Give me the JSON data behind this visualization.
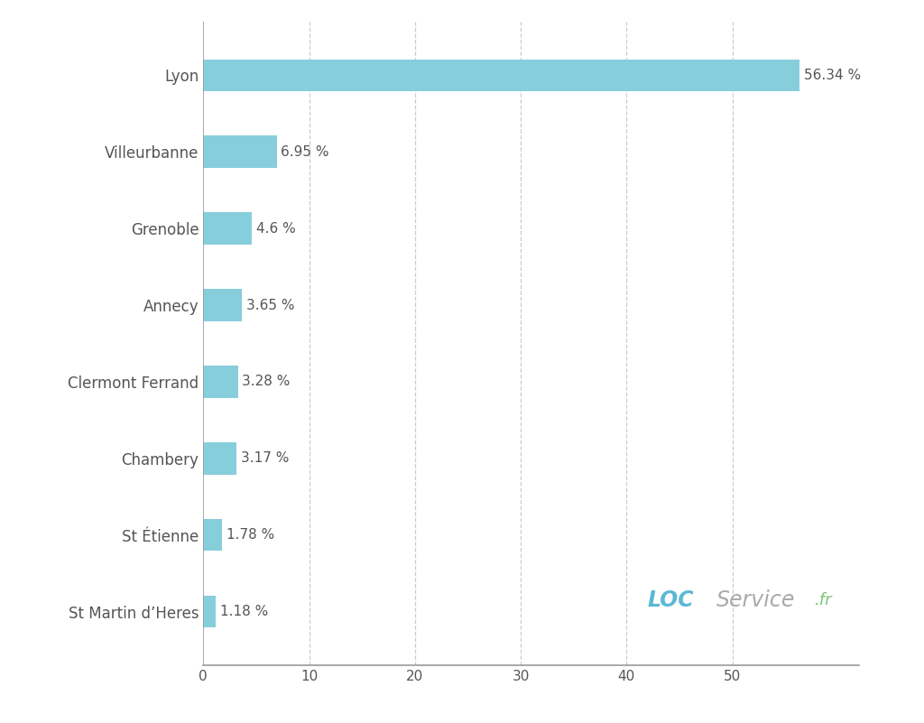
{
  "categories": [
    "St Martin d’Heres",
    "St Étienne",
    "Chambery",
    "Clermont Ferrand",
    "Annecy",
    "Grenoble",
    "Villeurbanne",
    "Lyon"
  ],
  "values": [
    1.18,
    1.78,
    3.17,
    3.28,
    3.65,
    4.6,
    6.95,
    56.34
  ],
  "labels": [
    "1.18 %",
    "1.78 %",
    "3.17 %",
    "3.28 %",
    "3.65 %",
    "4.6 %",
    "6.95 %",
    "56.34 %"
  ],
  "bar_color": "#87CEDC",
  "background_color": "#ffffff",
  "xlim": [
    0,
    62
  ],
  "xticks": [
    0,
    10,
    20,
    30,
    40,
    50
  ],
  "grid_color": "#cccccc",
  "label_color": "#555555",
  "axis_color": "#999999",
  "loc_color": "#5bb8d4",
  "service_color": "#aaaaaa",
  "fr_color": "#7dc47a",
  "bar_height": 0.42,
  "label_fontsize": 11,
  "tick_fontsize": 11,
  "ytick_fontsize": 12
}
